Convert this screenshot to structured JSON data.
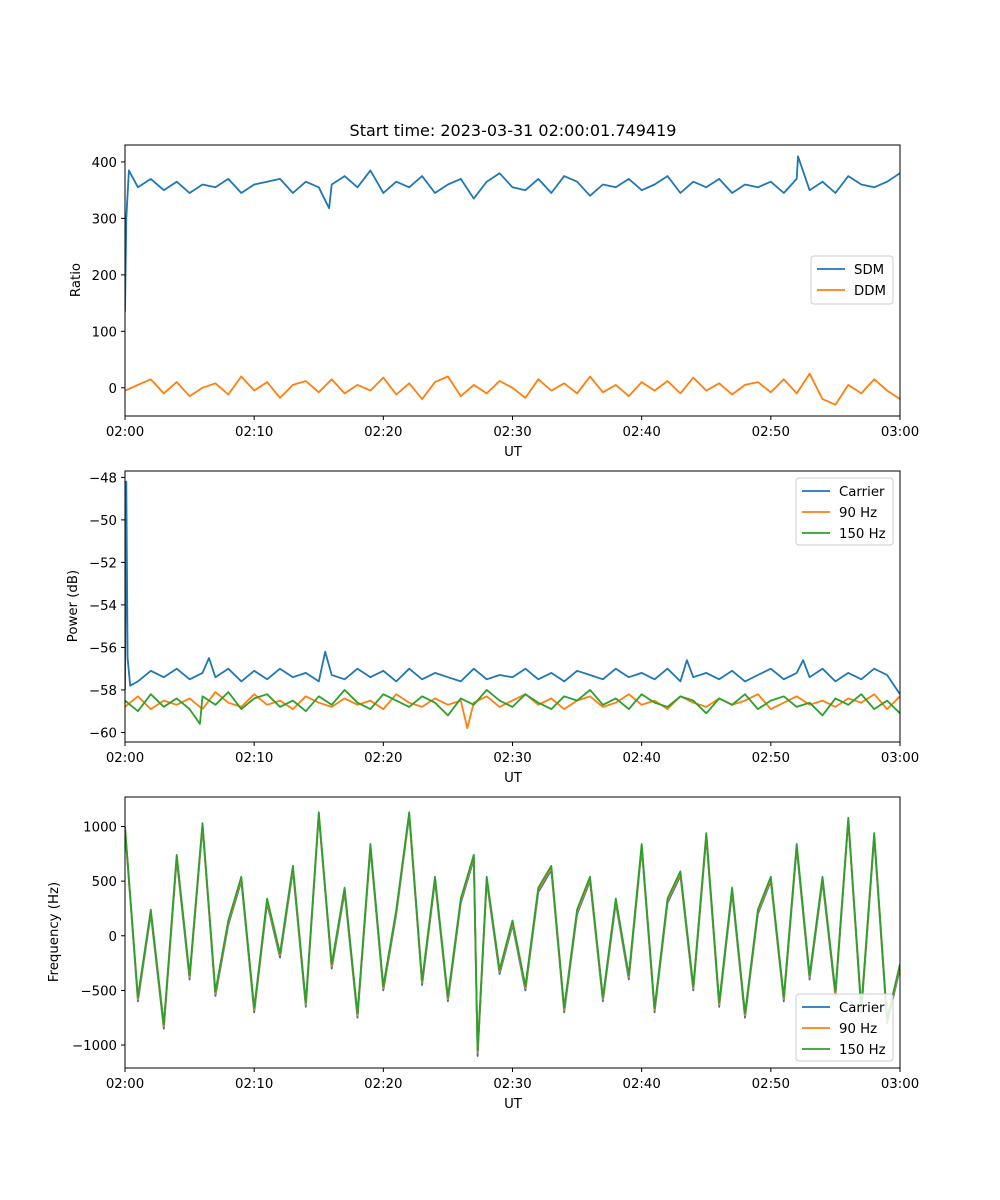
{
  "chart_data": [
    {
      "type": "line",
      "title": "Start time: 2023-03-31 02:00:01.749419",
      "xlabel": "UT",
      "ylabel": "Ratio",
      "xlim": [
        "02:00",
        "03:00"
      ],
      "ylim": [
        -50,
        430
      ],
      "x_ticks": [
        "02:00",
        "02:10",
        "02:20",
        "02:30",
        "02:40",
        "02:50",
        "03:00"
      ],
      "y_ticks": [
        0,
        100,
        200,
        300,
        400
      ],
      "legend_loc": "center-right",
      "series": [
        {
          "name": "SDM",
          "color": "#1f77b4",
          "x_minutes": [
            0,
            0.1,
            0.3,
            1,
            2,
            3,
            4,
            5,
            6,
            7,
            8,
            9,
            10,
            11,
            12,
            13,
            14,
            15,
            15.8,
            16,
            17,
            18,
            19,
            20,
            21,
            22,
            23,
            24,
            25,
            26,
            27,
            28,
            29,
            30,
            31,
            32,
            33,
            34,
            35,
            36,
            37,
            38,
            39,
            40,
            41,
            42,
            43,
            44,
            45,
            46,
            47,
            48,
            49,
            50,
            51,
            52,
            52.1,
            53,
            54,
            55,
            56,
            57,
            58,
            59,
            60
          ],
          "values": [
            135,
            300,
            385,
            355,
            370,
            350,
            365,
            345,
            360,
            355,
            370,
            345,
            360,
            365,
            370,
            345,
            365,
            355,
            318,
            360,
            375,
            355,
            385,
            345,
            365,
            355,
            375,
            345,
            360,
            370,
            335,
            365,
            380,
            355,
            350,
            370,
            345,
            375,
            365,
            340,
            360,
            355,
            370,
            350,
            360,
            375,
            345,
            365,
            355,
            370,
            345,
            360,
            355,
            365,
            345,
            370,
            410,
            350,
            365,
            345,
            375,
            360,
            355,
            365,
            380
          ]
        },
        {
          "name": "DDM",
          "color": "#ff7f0e",
          "x_minutes": [
            0,
            1,
            2,
            3,
            4,
            5,
            6,
            7,
            8,
            9,
            10,
            11,
            12,
            13,
            14,
            15,
            16,
            17,
            18,
            19,
            20,
            21,
            22,
            23,
            24,
            25,
            26,
            27,
            28,
            29,
            30,
            31,
            32,
            33,
            34,
            35,
            36,
            37,
            38,
            39,
            40,
            41,
            42,
            43,
            44,
            45,
            46,
            47,
            48,
            49,
            50,
            51,
            52,
            53,
            54,
            55,
            56,
            57,
            58,
            59,
            60
          ],
          "values": [
            -5,
            5,
            15,
            -10,
            10,
            -15,
            0,
            8,
            -12,
            20,
            -5,
            10,
            -18,
            5,
            12,
            -8,
            15,
            -10,
            5,
            -5,
            18,
            -12,
            8,
            -20,
            10,
            20,
            -15,
            5,
            -10,
            12,
            0,
            -18,
            15,
            -5,
            8,
            -10,
            20,
            -8,
            5,
            -15,
            10,
            -5,
            12,
            -10,
            18,
            -5,
            8,
            -12,
            5,
            10,
            -8,
            15,
            -10,
            25,
            -20,
            -30,
            5,
            -10,
            15,
            -5,
            -20
          ]
        }
      ]
    },
    {
      "type": "line",
      "title": "",
      "xlabel": "UT",
      "ylabel": "Power (dB)",
      "xlim": [
        "02:00",
        "03:00"
      ],
      "ylim": [
        -60.45,
        -47.7
      ],
      "x_ticks": [
        "02:00",
        "02:10",
        "02:20",
        "02:30",
        "02:40",
        "02:50",
        "03:00"
      ],
      "y_ticks": [
        -60,
        -58,
        -56,
        -54,
        -52,
        -50,
        -48
      ],
      "legend_loc": "upper-right",
      "series": [
        {
          "name": "Carrier",
          "color": "#1f77b4",
          "x_minutes": [
            0,
            0.1,
            0.2,
            0.4,
            1,
            2,
            3,
            4,
            5,
            6,
            6.5,
            7,
            8,
            9,
            10,
            11,
            12,
            13,
            14,
            15,
            15.5,
            16,
            17,
            18,
            19,
            20,
            21,
            22,
            23,
            24,
            25,
            26,
            27,
            28,
            29,
            30,
            31,
            32,
            33,
            34,
            35,
            36,
            37,
            38,
            39,
            40,
            41,
            42,
            43,
            43.5,
            44,
            45,
            46,
            47,
            48,
            49,
            50,
            51,
            52,
            52.5,
            53,
            54,
            55,
            56,
            57,
            58,
            59,
            60
          ],
          "values": [
            -58,
            -48.2,
            -56.5,
            -57.8,
            -57.6,
            -57.1,
            -57.4,
            -57.0,
            -57.5,
            -57.2,
            -56.5,
            -57.4,
            -57.0,
            -57.6,
            -57.1,
            -57.5,
            -57.0,
            -57.4,
            -57.2,
            -57.6,
            -56.2,
            -57.3,
            -57.5,
            -57.0,
            -57.4,
            -57.1,
            -57.6,
            -57.0,
            -57.5,
            -57.2,
            -57.4,
            -57.6,
            -57.0,
            -57.5,
            -57.3,
            -57.4,
            -57.0,
            -57.5,
            -57.2,
            -57.6,
            -57.1,
            -57.3,
            -57.5,
            -57.0,
            -57.4,
            -57.2,
            -57.5,
            -57.0,
            -57.6,
            -56.6,
            -57.4,
            -57.2,
            -57.5,
            -57.1,
            -57.6,
            -57.3,
            -57.0,
            -57.5,
            -57.2,
            -56.6,
            -57.4,
            -57.0,
            -57.6,
            -57.2,
            -57.5,
            -57.0,
            -57.3,
            -58.2
          ]
        },
        {
          "name": "90 Hz",
          "color": "#ff7f0e",
          "x_minutes": [
            0,
            1,
            2,
            3,
            4,
            5,
            6,
            7,
            8,
            9,
            10,
            11,
            12,
            13,
            14,
            15,
            16,
            17,
            18,
            19,
            20,
            21,
            22,
            23,
            24,
            25,
            26,
            26.5,
            27,
            28,
            29,
            30,
            31,
            32,
            33,
            34,
            35,
            36,
            37,
            38,
            39,
            40,
            41,
            42,
            43,
            44,
            45,
            46,
            47,
            48,
            49,
            50,
            51,
            52,
            53,
            54,
            55,
            56,
            57,
            58,
            59,
            60
          ],
          "values": [
            -58.8,
            -58.3,
            -58.9,
            -58.5,
            -58.7,
            -58.4,
            -58.9,
            -58.1,
            -58.6,
            -58.8,
            -58.2,
            -58.7,
            -58.5,
            -58.9,
            -58.3,
            -58.6,
            -58.8,
            -58.4,
            -58.7,
            -58.5,
            -58.9,
            -58.2,
            -58.6,
            -58.8,
            -58.4,
            -58.7,
            -58.5,
            -59.8,
            -58.6,
            -58.3,
            -58.8,
            -58.5,
            -58.2,
            -58.7,
            -58.4,
            -58.9,
            -58.5,
            -58.3,
            -58.8,
            -58.6,
            -58.2,
            -58.7,
            -58.5,
            -58.9,
            -58.3,
            -58.6,
            -58.8,
            -58.4,
            -58.7,
            -58.5,
            -58.2,
            -58.9,
            -58.6,
            -58.3,
            -58.7,
            -58.5,
            -58.8,
            -58.4,
            -58.6,
            -58.2,
            -58.9,
            -58.3
          ]
        },
        {
          "name": "150 Hz",
          "color": "#2ca02c",
          "x_minutes": [
            0,
            1,
            2,
            3,
            4,
            5,
            5.8,
            6,
            7,
            8,
            9,
            10,
            11,
            12,
            13,
            14,
            15,
            16,
            17,
            18,
            19,
            20,
            21,
            22,
            23,
            24,
            25,
            26,
            27,
            28,
            29,
            30,
            31,
            32,
            33,
            34,
            35,
            36,
            37,
            38,
            39,
            40,
            41,
            42,
            43,
            44,
            45,
            46,
            47,
            48,
            49,
            50,
            51,
            52,
            53,
            54,
            55,
            56,
            57,
            58,
            59,
            60
          ],
          "values": [
            -58.5,
            -59.0,
            -58.2,
            -58.8,
            -58.4,
            -58.9,
            -59.6,
            -58.3,
            -58.7,
            -58.1,
            -58.9,
            -58.4,
            -58.2,
            -58.8,
            -58.5,
            -59.0,
            -58.3,
            -58.7,
            -58.0,
            -58.6,
            -58.9,
            -58.2,
            -58.5,
            -58.8,
            -58.3,
            -58.6,
            -59.2,
            -58.4,
            -58.7,
            -58.0,
            -58.5,
            -58.8,
            -58.2,
            -58.6,
            -58.9,
            -58.3,
            -58.5,
            -58.0,
            -58.7,
            -58.4,
            -58.9,
            -58.2,
            -58.6,
            -58.8,
            -58.3,
            -58.5,
            -59.1,
            -58.4,
            -58.7,
            -58.2,
            -58.9,
            -58.5,
            -58.3,
            -58.8,
            -58.6,
            -59.2,
            -58.4,
            -58.7,
            -58.2,
            -58.9,
            -58.5,
            -59.1
          ]
        }
      ]
    },
    {
      "type": "line",
      "title": "",
      "xlabel": "UT",
      "ylabel": "Frequency (Hz)",
      "xlim": [
        "02:00",
        "03:00"
      ],
      "ylim": [
        -1210,
        1270
      ],
      "x_ticks": [
        "02:00",
        "02:10",
        "02:20",
        "02:30",
        "02:40",
        "02:50",
        "03:00"
      ],
      "y_ticks": [
        -1000,
        -500,
        0,
        500,
        1000
      ],
      "legend_loc": "lower-right",
      "series": [
        {
          "name": "Carrier",
          "color": "#1f77b4",
          "x_minutes": [
            0,
            1,
            2,
            3,
            4,
            5,
            6,
            7,
            8,
            9,
            10,
            11,
            12,
            13,
            14,
            15,
            16,
            17,
            18,
            19,
            20,
            21,
            22,
            23,
            24,
            25,
            26,
            27,
            27.3,
            28,
            29,
            30,
            31,
            32,
            33,
            34,
            35,
            36,
            37,
            38,
            39,
            40,
            41,
            42,
            43,
            44,
            45,
            46,
            47,
            48,
            49,
            50,
            51,
            52,
            53,
            54,
            55,
            56,
            57,
            58,
            59,
            60
          ],
          "values": [
            980,
            -600,
            200,
            -850,
            700,
            -400,
            1000,
            -550,
            100,
            500,
            -700,
            300,
            -200,
            600,
            -650,
            1100,
            -300,
            400,
            -750,
            800,
            -500,
            200,
            1100,
            -450,
            500,
            -600,
            300,
            700,
            -1100,
            500,
            -350,
            100,
            -500,
            400,
            600,
            -700,
            200,
            500,
            -600,
            300,
            -400,
            800,
            -700,
            300,
            550,
            -500,
            900,
            -650,
            400,
            -750,
            200,
            500,
            -600,
            800,
            -400,
            500,
            -550,
            1050,
            -700,
            900,
            -800,
            -300
          ]
        },
        {
          "name": "90 Hz",
          "color": "#ff7f0e",
          "x_minutes": [
            0,
            1,
            2,
            3,
            4,
            5,
            6,
            7,
            8,
            9,
            10,
            11,
            12,
            13,
            14,
            15,
            16,
            17,
            18,
            19,
            20,
            21,
            22,
            23,
            24,
            25,
            26,
            27,
            27.3,
            28,
            29,
            30,
            31,
            32,
            33,
            34,
            35,
            36,
            37,
            38,
            39,
            40,
            41,
            42,
            43,
            44,
            45,
            46,
            47,
            48,
            49,
            50,
            51,
            52,
            53,
            54,
            55,
            56,
            57,
            58,
            59,
            60
          ],
          "values": [
            990,
            -580,
            220,
            -830,
            720,
            -380,
            1010,
            -530,
            120,
            520,
            -680,
            320,
            -180,
            620,
            -630,
            1110,
            -280,
            420,
            -730,
            820,
            -480,
            220,
            1110,
            -430,
            520,
            -580,
            320,
            720,
            -1070,
            520,
            -330,
            120,
            -480,
            420,
            620,
            -680,
            220,
            520,
            -580,
            320,
            -380,
            820,
            -680,
            320,
            570,
            -480,
            920,
            -630,
            420,
            -730,
            220,
            520,
            -580,
            820,
            -380,
            520,
            -530,
            1060,
            -680,
            920,
            -780,
            -280
          ]
        },
        {
          "name": "150 Hz",
          "color": "#2ca02c",
          "x_minutes": [
            0,
            1,
            2,
            3,
            4,
            5,
            6,
            7,
            8,
            9,
            10,
            11,
            12,
            13,
            14,
            15,
            16,
            17,
            18,
            19,
            20,
            21,
            22,
            23,
            24,
            25,
            26,
            27,
            27.3,
            28,
            29,
            30,
            31,
            32,
            33,
            34,
            35,
            36,
            37,
            38,
            39,
            40,
            41,
            42,
            43,
            44,
            45,
            46,
            47,
            48,
            49,
            50,
            51,
            52,
            53,
            54,
            55,
            56,
            57,
            58,
            59,
            60
          ],
          "values": [
            1000,
            -560,
            240,
            -810,
            740,
            -360,
            1030,
            -510,
            140,
            540,
            -660,
            340,
            -160,
            640,
            -610,
            1130,
            -260,
            440,
            -710,
            840,
            -460,
            240,
            1130,
            -410,
            540,
            -560,
            340,
            740,
            -1050,
            540,
            -310,
            140,
            -460,
            440,
            640,
            -660,
            240,
            540,
            -560,
            340,
            -360,
            840,
            -660,
            340,
            590,
            -460,
            940,
            -610,
            440,
            -710,
            240,
            540,
            -560,
            840,
            -360,
            540,
            -510,
            1080,
            -660,
            940,
            -760,
            -260
          ]
        }
      ]
    }
  ]
}
